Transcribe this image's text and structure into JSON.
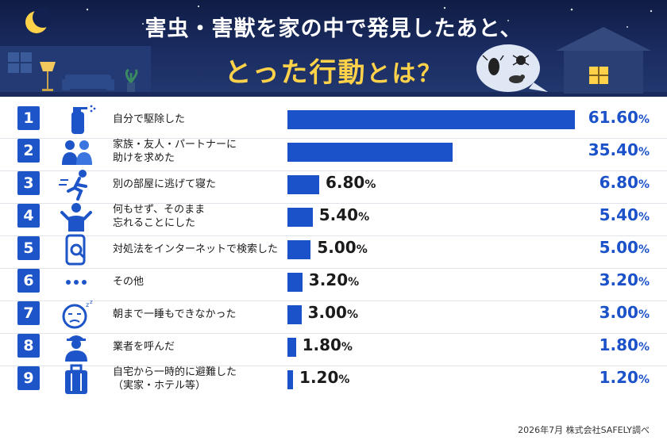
{
  "header": {
    "title_line1": "害虫・害獣を家の中で発見したあと、",
    "title_line2_main": "とった行動",
    "title_line2_tail": "とは？"
  },
  "chart_data": {
    "type": "bar",
    "orientation": "horizontal",
    "title": "害虫・害獣を家の中で発見したあと、とった行動とは？",
    "unit": "%",
    "xlim": [
      0,
      61.6
    ],
    "categories": [
      "自分で駆除した",
      "家族・友人・パートナーに\n助けを求めた",
      "別の部屋に逃げて寝た",
      "何もせず、そのまま\n忘れることにした",
      "対処法をインターネットで検索した",
      "その他",
      "朝まで一睡もできなかった",
      "業者を呼んだ",
      "自宅から一時的に避難した\n（実家・ホテル等）"
    ],
    "ranks": [
      "1",
      "2",
      "3",
      "4",
      "5",
      "6",
      "7",
      "8",
      "9"
    ],
    "values": [
      61.6,
      35.4,
      6.8,
      5.4,
      5.0,
      3.2,
      3.0,
      1.8,
      1.2
    ],
    "value_labels": [
      "61.60",
      "35.40",
      "6.80",
      "5.40",
      "5.00",
      "3.20",
      "3.00",
      "1.80",
      "1.20"
    ],
    "inner_labels": [
      "",
      "",
      "6.80",
      "5.40",
      "5.00",
      "3.20",
      "3.00",
      "1.80",
      "1.20"
    ],
    "bar_color": "#1c52c9"
  },
  "icons": [
    "spray-bottle-icon",
    "people-icon",
    "running-person-icon",
    "shrug-person-icon",
    "phone-search-icon",
    "ellipsis-icon",
    "sleepless-face-icon",
    "worker-icon",
    "suitcase-icon"
  ],
  "footnote": "2026年7月 株式会社SAFELY調べ"
}
